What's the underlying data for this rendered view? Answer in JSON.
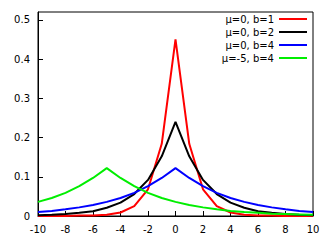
{
  "chart_data": {
    "type": "line",
    "x": [
      -10,
      -9,
      -8,
      -7,
      -6,
      -5,
      -4,
      -3,
      -2,
      -1,
      0,
      1,
      2,
      3,
      4,
      5,
      6,
      7,
      8,
      9,
      10
    ],
    "series": [
      {
        "name": "μ=0, b=1",
        "color": "#ff0000",
        "values": [
          0,
          0,
          0,
          0.001,
          0.001,
          0.003,
          0.009,
          0.025,
          0.068,
          0.184,
          0.45,
          0.184,
          0.068,
          0.025,
          0.009,
          0.003,
          0.001,
          0.001,
          0,
          0,
          0
        ]
      },
      {
        "name": "μ=0, b=2",
        "color": "#000000",
        "values": [
          0.002,
          0.003,
          0.005,
          0.008,
          0.012,
          0.021,
          0.034,
          0.056,
          0.092,
          0.152,
          0.24,
          0.152,
          0.092,
          0.056,
          0.034,
          0.021,
          0.012,
          0.008,
          0.005,
          0.003,
          0.002
        ]
      },
      {
        "name": "μ=0, b=4",
        "color": "#0000ff",
        "values": [
          0.01,
          0.013,
          0.017,
          0.022,
          0.028,
          0.036,
          0.046,
          0.059,
          0.076,
          0.097,
          0.122,
          0.097,
          0.076,
          0.059,
          0.046,
          0.036,
          0.028,
          0.022,
          0.017,
          0.013,
          0.01
        ]
      },
      {
        "name": "μ=-5, b=4",
        "color": "#00ee00",
        "values": [
          0.036,
          0.046,
          0.059,
          0.076,
          0.097,
          0.122,
          0.097,
          0.076,
          0.059,
          0.046,
          0.036,
          0.028,
          0.022,
          0.017,
          0.013,
          0.01,
          0.008,
          0.006,
          0.005,
          0.004,
          0.003
        ]
      }
    ],
    "xlim": [
      -10,
      10
    ],
    "xticks": [
      -10,
      -8,
      -6,
      -4,
      -2,
      0,
      2,
      4,
      6,
      8,
      10
    ],
    "ylim": [
      0,
      0.52
    ],
    "yticks": [
      0,
      0.1,
      0.2,
      0.3,
      0.4,
      0.5
    ],
    "grid": false,
    "legend": "upper right"
  }
}
